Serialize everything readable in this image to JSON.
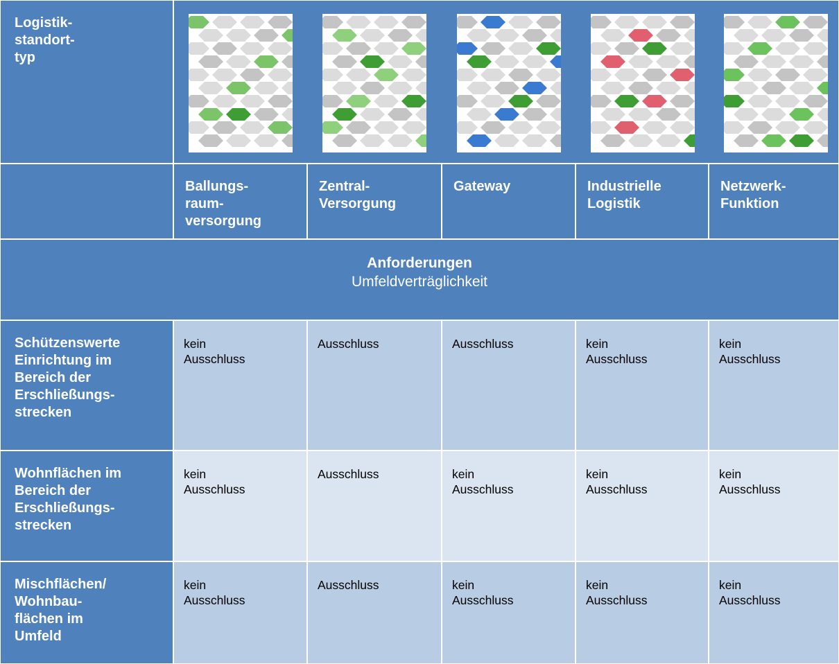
{
  "table": {
    "header": {
      "label": "Logistik-\nstandort-\ntyp",
      "columns": [
        "Ballungs-\nraum-\nversorgung",
        "Zentral-\nVersorgung",
        "Gateway",
        "Industrielle\nLogistik",
        "Netzwerk-\nFunktion"
      ]
    },
    "section": {
      "title": "Anforderungen",
      "subtitle": "Umfeldverträglichkeit"
    },
    "rows": [
      {
        "label": "Schützenswerte\nEinrichtung im\nBereich der\nErschließungs-\nstrecken",
        "cells": [
          "kein\nAusschluss",
          "Ausschluss",
          "Ausschluss",
          "kein\nAusschluss",
          "kein\nAusschluss"
        ]
      },
      {
        "label": "Wohnflächen im\nBereich der\nErschließungs-\nstrecken",
        "cells": [
          "kein\nAusschluss",
          "Ausschluss",
          "kein\nAusschluss",
          "kein\nAusschluss",
          "kein\nAusschluss"
        ]
      },
      {
        "label": "Mischflächen/\nWohnbau-\nflächen im\nUmfeld",
        "cells": [
          "kein\nAusschluss",
          "Ausschluss",
          "kein\nAusschluss",
          "kein\nAusschluss",
          "kein\nAusschluss"
        ]
      }
    ]
  }
}
